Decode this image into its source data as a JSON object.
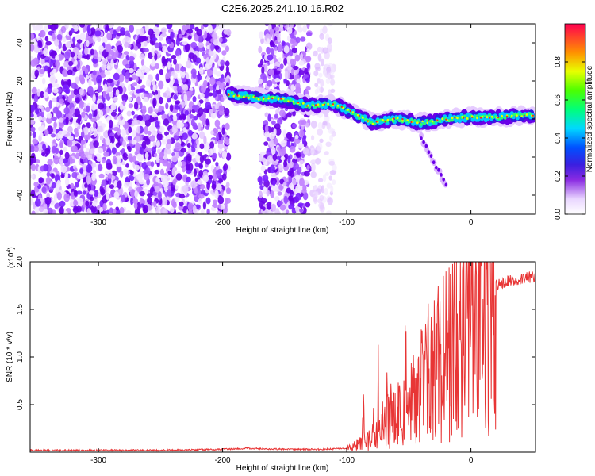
{
  "chart_data": [
    {
      "type": "heatmap",
      "title": "C2E6.2025.241.10.16.R02",
      "xlabel": "Height of straight line (km)",
      "ylabel": "Frequency (Hz)",
      "xlim": [
        -355,
        52
      ],
      "ylim": [
        -50,
        50
      ],
      "x_ticks": [
        -300,
        -200,
        -100,
        0
      ],
      "y_ticks": [
        -40,
        -20,
        0,
        20,
        40
      ],
      "colorbar": {
        "label": "Normalized spectral amplitude",
        "range": [
          0,
          1
        ],
        "ticks": [
          0.0,
          0.2,
          0.4,
          0.6,
          0.8
        ]
      },
      "features": [
        {
          "name": "noise",
          "x_range": [
            -355,
            -195
          ],
          "amplitude": 0.1
        },
        {
          "name": "noise",
          "x_range": [
            -170,
            -130
          ],
          "amplitude": 0.1
        },
        {
          "name": "faint-noise",
          "x_range": [
            -128,
            -110
          ],
          "amplitude": 0.05
        },
        {
          "name": "signal-track",
          "points": [
            [
              -195,
              13
            ],
            [
              -170,
              11
            ],
            [
              -150,
              10
            ],
            [
              -130,
              7
            ],
            [
              -110,
              8
            ],
            [
              -95,
              3
            ],
            [
              -80,
              -2
            ],
            [
              -60,
              0
            ],
            [
              -40,
              -2
            ],
            [
              -20,
              0
            ],
            [
              0,
              1
            ],
            [
              20,
              1
            ],
            [
              50,
              2
            ]
          ],
          "amplitude": 0.9
        },
        {
          "name": "falling-branch",
          "points": [
            [
              -40,
              -10
            ],
            [
              -28,
              -25
            ],
            [
              -20,
              -35
            ]
          ],
          "amplitude": 0.3
        }
      ]
    },
    {
      "type": "line",
      "xlabel": "Height of straight line (km)",
      "ylabel": "SNR (10 * v/v)",
      "multiplier_label": "(x10",
      "multiplier_exp": "4",
      "xlim": [
        -355,
        52
      ],
      "ylim": [
        0,
        2.0
      ],
      "x_ticks": [
        -300,
        -200,
        -100,
        0
      ],
      "y_ticks": [
        0.5,
        1.0,
        1.5,
        2.0
      ],
      "series": [
        {
          "name": "SNR",
          "color": "#e83535",
          "x": [
            -355,
            -300,
            -250,
            -200,
            -180,
            -150,
            -120,
            -100,
            -90,
            -80,
            -70,
            -60,
            -50,
            -40,
            -30,
            -20,
            -10,
            0,
            10,
            20,
            30,
            40,
            52
          ],
          "y": [
            0.02,
            0.02,
            0.02,
            0.03,
            0.04,
            0.03,
            0.03,
            0.04,
            0.08,
            0.15,
            0.3,
            0.4,
            0.45,
            0.7,
            0.9,
            1.0,
            1.2,
            1.5,
            1.7,
            1.75,
            1.8,
            1.82,
            1.85
          ]
        }
      ]
    }
  ]
}
